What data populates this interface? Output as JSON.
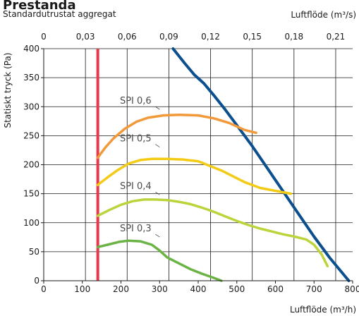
{
  "chart_data": {
    "type": "line",
    "title": "Prestanda",
    "subtitle": "Standardutrustat aggregat",
    "xlabel": "Luftflöde (m³/h)",
    "x2label": "Luftflöde (m³/s)",
    "ylabel": "Statiskt tryck (Pa)",
    "xlim": [
      0,
      800
    ],
    "ylim": [
      0,
      400
    ],
    "x2lim": [
      0,
      0.2222
    ],
    "xticks": [
      0,
      100,
      200,
      300,
      400,
      500,
      600,
      700,
      800
    ],
    "x2ticks": [
      "0",
      "0,03",
      "0,06",
      "0,09",
      "0,12",
      "0,15",
      "0,18",
      "0,21"
    ],
    "x2tick_values": [
      0,
      0.03,
      0.06,
      0.09,
      0.12,
      0.15,
      0.18,
      0.21
    ],
    "yticks": [
      0,
      50,
      100,
      150,
      200,
      250,
      300,
      350,
      400
    ],
    "grid": true,
    "min_flow_line": {
      "x": 140,
      "color": "#e8394a"
    },
    "series": [
      {
        "name": "",
        "color": "#0b4f8f",
        "x": [
          335,
          365,
          390,
          415,
          440,
          470,
          500,
          540,
          580,
          620,
          660,
          700,
          740,
          790
        ],
        "y": [
          400,
          375,
          355,
          340,
          320,
          295,
          268,
          232,
          193,
          154,
          115,
          76,
          40,
          0
        ]
      },
      {
        "name": "SPI 0,6",
        "color": "#f2993a",
        "x": [
          140,
          160,
          180,
          210,
          240,
          270,
          310,
          350,
          400,
          440,
          480,
          520,
          550
        ],
        "y": [
          212,
          230,
          245,
          262,
          274,
          281,
          285,
          286,
          285,
          280,
          272,
          260,
          255
        ]
      },
      {
        "name": "SPI 0,5",
        "color": "#f4cb14",
        "x": [
          140,
          165,
          190,
          220,
          250,
          280,
          320,
          360,
          400,
          430,
          460,
          490,
          520,
          560,
          600,
          640
        ],
        "y": [
          165,
          178,
          190,
          202,
          208,
          210,
          210,
          209,
          206,
          198,
          190,
          180,
          170,
          160,
          155,
          150
        ]
      },
      {
        "name": "SPI 0,4",
        "color": "#bcd43c",
        "x": [
          140,
          170,
          200,
          230,
          260,
          290,
          320,
          350,
          380,
          410,
          440,
          470,
          500,
          530,
          560,
          590,
          620,
          650,
          680,
          700,
          720,
          735
        ],
        "y": [
          112,
          122,
          131,
          137,
          140,
          140,
          139,
          136,
          132,
          126,
          119,
          111,
          103,
          96,
          90,
          85,
          80,
          76,
          71,
          62,
          45,
          25
        ]
      },
      {
        "name": "SPI 0,3",
        "color": "#6cb345",
        "x": [
          140,
          165,
          195,
          220,
          250,
          280,
          300,
          320,
          350,
          380,
          410,
          440,
          460
        ],
        "y": [
          58,
          62,
          67,
          69,
          68,
          62,
          52,
          40,
          30,
          20,
          12,
          5,
          0
        ]
      }
    ]
  }
}
